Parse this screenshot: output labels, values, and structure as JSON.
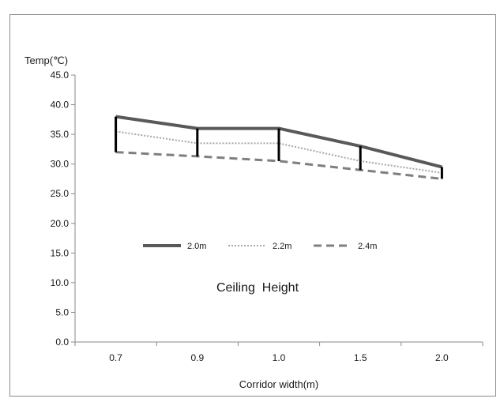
{
  "chart_data": {
    "type": "line",
    "title": "",
    "xlabel": "Corridor width(m)",
    "ylabel": "Temp(℃)",
    "categories": [
      "0.7",
      "0.9",
      "1.0",
      "1.5",
      "2.0"
    ],
    "ylim": [
      0,
      45
    ],
    "ytick_labels": [
      "0.0",
      "5.0",
      "10.0",
      "15.0",
      "20.0",
      "25.0",
      "30.0",
      "35.0",
      "40.0",
      "45.0"
    ],
    "series": [
      {
        "name": "2.0m",
        "values": [
          38.0,
          36.0,
          36.0,
          33.0,
          29.5
        ],
        "color": "#595959",
        "style": "solid"
      },
      {
        "name": "2.2m",
        "values": [
          35.5,
          33.5,
          33.5,
          30.5,
          28.5
        ],
        "color": "#a6a6a6",
        "style": "dotted"
      },
      {
        "name": "2.4m",
        "values": [
          32.0,
          31.3,
          30.5,
          29.0,
          27.5
        ],
        "color": "#7f7f7f",
        "style": "dashed"
      }
    ],
    "annotation": "Ceiling  Height",
    "grid": false,
    "legend_position": "center"
  }
}
